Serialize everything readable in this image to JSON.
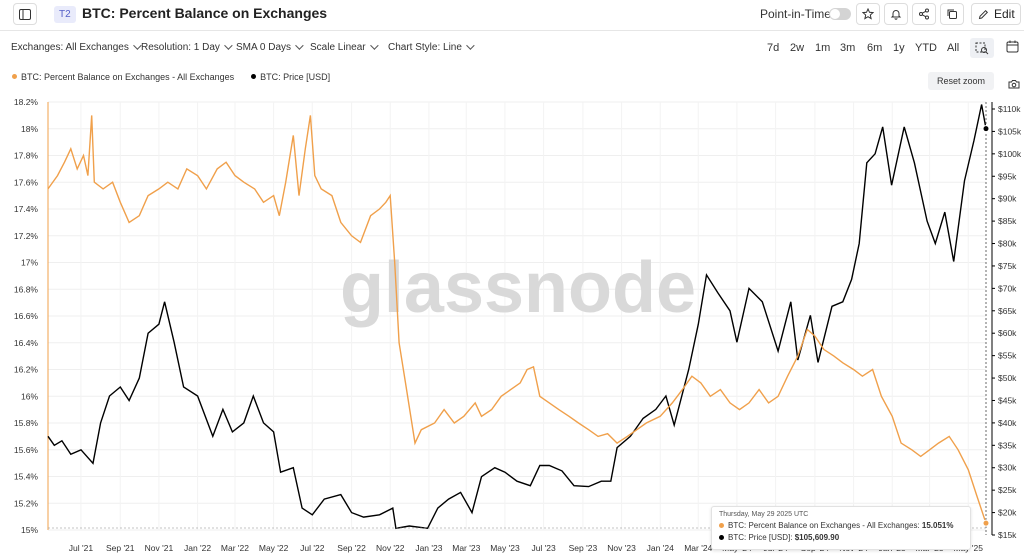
{
  "header": {
    "tier_badge": "T2",
    "title": "BTC: Percent Balance on Exchanges",
    "point_in_time_label": "Point-in-Time",
    "edit_label": "Edit"
  },
  "controls": {
    "exchanges": "Exchanges: All Exchanges",
    "resolution": "Resolution: 1 Day",
    "sma": "SMA 0 Days",
    "scale": "Scale Linear",
    "chart_style": "Chart Style: Line",
    "ranges": [
      "7d",
      "2w",
      "1m",
      "3m",
      "6m",
      "1y",
      "YTD",
      "All"
    ]
  },
  "reset_zoom_label": "Reset zoom",
  "watermark": "glassnode",
  "colors": {
    "balance": "#f0a04b",
    "price": "#000000"
  },
  "tooltip": {
    "date": "Thursday, May 29 2025 UTC",
    "balance_label": "BTC: Percent Balance on Exchanges - All Exchanges:",
    "balance_value": "15.051%",
    "price_label": "BTC: Price [USD]:",
    "price_value": "$105,609.90"
  },
  "chart_data": {
    "type": "line",
    "legend_placement": "top-left",
    "grid": true,
    "x_tick_labels": [
      "Jul '21",
      "Sep '21",
      "Nov '21",
      "Jan '22",
      "Mar '22",
      "May '22",
      "Jul '22",
      "Sep '22",
      "Nov '22",
      "Jan '23",
      "Mar '23",
      "May '23",
      "Jul '23",
      "Sep '23",
      "Nov '23",
      "Jan '24",
      "Mar '24",
      "May '24",
      "Jul '24",
      "Sep '24",
      "Nov '24",
      "Jan '25",
      "Mar '25",
      "May '25"
    ],
    "y_left_tick_labels": [
      "15%",
      "15.2%",
      "15.4%",
      "15.6%",
      "15.8%",
      "16%",
      "16.2%",
      "16.4%",
      "16.6%",
      "16.8%",
      "17%",
      "17.2%",
      "17.4%",
      "17.6%",
      "17.8%",
      "18%",
      "18.2%"
    ],
    "y_left_range": [
      15.0,
      18.2
    ],
    "y_right_tick_labels": [
      "$15k",
      "$20k",
      "$25k",
      "$30k",
      "$35k",
      "$40k",
      "$45k",
      "$50k",
      "$55k",
      "$60k",
      "$65k",
      "$70k",
      "$75k",
      "$80k",
      "$85k",
      "$90k",
      "$95k",
      "$100k",
      "$105k",
      "$110k"
    ],
    "y_right_range": [
      15000,
      110000
    ],
    "series": [
      {
        "name": "BTC: Percent Balance on Exchanges - All Exchanges",
        "axis": "left",
        "points": [
          [
            "2021-05-10",
            17.55
          ],
          [
            "2021-05-25",
            17.65
          ],
          [
            "2021-06-05",
            17.75
          ],
          [
            "2021-06-15",
            17.85
          ],
          [
            "2021-06-25",
            17.7
          ],
          [
            "2021-07-05",
            17.8
          ],
          [
            "2021-07-12",
            17.65
          ],
          [
            "2021-07-18",
            18.1
          ],
          [
            "2021-07-22",
            17.6
          ],
          [
            "2021-08-05",
            17.55
          ],
          [
            "2021-08-20",
            17.6
          ],
          [
            "2021-09-01",
            17.45
          ],
          [
            "2021-09-15",
            17.3
          ],
          [
            "2021-10-01",
            17.35
          ],
          [
            "2021-10-15",
            17.5
          ],
          [
            "2021-11-01",
            17.55
          ],
          [
            "2021-11-15",
            17.6
          ],
          [
            "2021-12-01",
            17.55
          ],
          [
            "2021-12-15",
            17.7
          ],
          [
            "2022-01-01",
            17.65
          ],
          [
            "2022-01-15",
            17.55
          ],
          [
            "2022-02-01",
            17.7
          ],
          [
            "2022-02-15",
            17.75
          ],
          [
            "2022-03-01",
            17.65
          ],
          [
            "2022-03-15",
            17.6
          ],
          [
            "2022-04-01",
            17.55
          ],
          [
            "2022-04-15",
            17.45
          ],
          [
            "2022-05-01",
            17.5
          ],
          [
            "2022-05-10",
            17.35
          ],
          [
            "2022-05-20",
            17.6
          ],
          [
            "2022-06-01",
            17.95
          ],
          [
            "2022-06-10",
            17.5
          ],
          [
            "2022-06-20",
            17.85
          ],
          [
            "2022-06-28",
            18.1
          ],
          [
            "2022-07-05",
            17.65
          ],
          [
            "2022-07-15",
            17.55
          ],
          [
            "2022-08-01",
            17.5
          ],
          [
            "2022-08-15",
            17.3
          ],
          [
            "2022-09-01",
            17.2
          ],
          [
            "2022-09-15",
            17.15
          ],
          [
            "2022-10-01",
            17.35
          ],
          [
            "2022-10-15",
            17.4
          ],
          [
            "2022-10-25",
            17.45
          ],
          [
            "2022-11-01",
            17.5
          ],
          [
            "2022-11-08",
            17.0
          ],
          [
            "2022-11-15",
            16.4
          ],
          [
            "2022-11-25",
            16.1
          ],
          [
            "2022-12-10",
            15.65
          ],
          [
            "2022-12-20",
            15.75
          ],
          [
            "2023-01-10",
            15.8
          ],
          [
            "2023-01-25",
            15.9
          ],
          [
            "2023-02-10",
            15.8
          ],
          [
            "2023-02-25",
            15.85
          ],
          [
            "2023-03-15",
            15.95
          ],
          [
            "2023-03-25",
            15.85
          ],
          [
            "2023-04-10",
            15.9
          ],
          [
            "2023-04-25",
            16.0
          ],
          [
            "2023-05-10",
            16.05
          ],
          [
            "2023-05-25",
            16.1
          ],
          [
            "2023-06-05",
            16.2
          ],
          [
            "2023-06-15",
            16.22
          ],
          [
            "2023-06-25",
            16.0
          ],
          [
            "2023-07-10",
            15.95
          ],
          [
            "2023-07-25",
            15.9
          ],
          [
            "2023-08-10",
            15.85
          ],
          [
            "2023-08-25",
            15.8
          ],
          [
            "2023-09-10",
            15.75
          ],
          [
            "2023-09-25",
            15.7
          ],
          [
            "2023-10-10",
            15.72
          ],
          [
            "2023-10-25",
            15.65
          ],
          [
            "2023-11-10",
            15.7
          ],
          [
            "2023-11-25",
            15.75
          ],
          [
            "2023-12-10",
            15.8
          ],
          [
            "2024-01-01",
            15.85
          ],
          [
            "2024-01-20",
            15.95
          ],
          [
            "2024-02-05",
            16.05
          ],
          [
            "2024-02-20",
            16.15
          ],
          [
            "2024-03-05",
            16.1
          ],
          [
            "2024-03-20",
            16.0
          ],
          [
            "2024-04-05",
            16.05
          ],
          [
            "2024-04-20",
            15.95
          ],
          [
            "2024-05-05",
            15.9
          ],
          [
            "2024-05-20",
            15.95
          ],
          [
            "2024-06-05",
            16.05
          ],
          [
            "2024-06-20",
            15.95
          ],
          [
            "2024-07-05",
            16.0
          ],
          [
            "2024-07-20",
            16.15
          ],
          [
            "2024-08-05",
            16.3
          ],
          [
            "2024-08-20",
            16.5
          ],
          [
            "2024-09-01",
            16.45
          ],
          [
            "2024-09-15",
            16.35
          ],
          [
            "2024-10-01",
            16.3
          ],
          [
            "2024-10-15",
            16.25
          ],
          [
            "2024-11-01",
            16.2
          ],
          [
            "2024-11-15",
            16.15
          ],
          [
            "2024-12-01",
            16.2
          ],
          [
            "2024-12-15",
            16.0
          ],
          [
            "2025-01-01",
            15.85
          ],
          [
            "2025-01-15",
            15.65
          ],
          [
            "2025-02-01",
            15.6
          ],
          [
            "2025-02-15",
            15.55
          ],
          [
            "2025-03-01",
            15.6
          ],
          [
            "2025-03-15",
            15.65
          ],
          [
            "2025-04-01",
            15.7
          ],
          [
            "2025-04-15",
            15.6
          ],
          [
            "2025-05-01",
            15.45
          ],
          [
            "2025-05-15",
            15.25
          ],
          [
            "2025-05-29",
            15.051
          ]
        ]
      },
      {
        "name": "BTC: Price [USD]",
        "axis": "right",
        "points": [
          [
            "2021-05-10",
            37000
          ],
          [
            "2021-05-20",
            35000
          ],
          [
            "2021-06-01",
            36000
          ],
          [
            "2021-06-15",
            33000
          ],
          [
            "2021-07-01",
            34000
          ],
          [
            "2021-07-20",
            31000
          ],
          [
            "2021-08-01",
            40000
          ],
          [
            "2021-08-15",
            46000
          ],
          [
            "2021-09-01",
            48000
          ],
          [
            "2021-09-15",
            45000
          ],
          [
            "2021-10-01",
            50000
          ],
          [
            "2021-10-15",
            60000
          ],
          [
            "2021-11-01",
            62000
          ],
          [
            "2021-11-10",
            67000
          ],
          [
            "2021-11-25",
            58000
          ],
          [
            "2021-12-10",
            48000
          ],
          [
            "2022-01-01",
            46000
          ],
          [
            "2022-01-25",
            37000
          ],
          [
            "2022-02-10",
            43000
          ],
          [
            "2022-02-25",
            38000
          ],
          [
            "2022-03-15",
            40000
          ],
          [
            "2022-03-30",
            46000
          ],
          [
            "2022-04-15",
            40000
          ],
          [
            "2022-05-01",
            38000
          ],
          [
            "2022-05-12",
            29000
          ],
          [
            "2022-06-01",
            30000
          ],
          [
            "2022-06-15",
            21000
          ],
          [
            "2022-07-01",
            19500
          ],
          [
            "2022-07-20",
            23000
          ],
          [
            "2022-08-15",
            24000
          ],
          [
            "2022-09-01",
            20000
          ],
          [
            "2022-09-20",
            19000
          ],
          [
            "2022-10-15",
            19500
          ],
          [
            "2022-11-05",
            21000
          ],
          [
            "2022-11-10",
            16500
          ],
          [
            "2022-12-01",
            17000
          ],
          [
            "2022-12-30",
            16500
          ],
          [
            "2023-01-15",
            21000
          ],
          [
            "2023-02-01",
            23000
          ],
          [
            "2023-02-20",
            24500
          ],
          [
            "2023-03-10",
            20000
          ],
          [
            "2023-03-25",
            28000
          ],
          [
            "2023-04-15",
            30000
          ],
          [
            "2023-05-01",
            29000
          ],
          [
            "2023-05-20",
            27000
          ],
          [
            "2023-06-10",
            26000
          ],
          [
            "2023-06-25",
            30500
          ],
          [
            "2023-07-10",
            30500
          ],
          [
            "2023-07-30",
            29300
          ],
          [
            "2023-08-18",
            26000
          ],
          [
            "2023-09-10",
            25800
          ],
          [
            "2023-09-30",
            27000
          ],
          [
            "2023-10-15",
            27000
          ],
          [
            "2023-10-25",
            34500
          ],
          [
            "2023-11-15",
            37000
          ],
          [
            "2023-12-05",
            41000
          ],
          [
            "2023-12-25",
            43000
          ],
          [
            "2024-01-10",
            46000
          ],
          [
            "2024-01-23",
            39500
          ],
          [
            "2024-02-15",
            52000
          ],
          [
            "2024-03-01",
            62000
          ],
          [
            "2024-03-14",
            73000
          ],
          [
            "2024-04-01",
            69000
          ],
          [
            "2024-04-20",
            65000
          ],
          [
            "2024-05-01",
            58000
          ],
          [
            "2024-05-20",
            70000
          ],
          [
            "2024-06-10",
            67000
          ],
          [
            "2024-07-05",
            56000
          ],
          [
            "2024-07-25",
            67000
          ],
          [
            "2024-08-05",
            54000
          ],
          [
            "2024-08-25",
            64000
          ],
          [
            "2024-09-06",
            53500
          ],
          [
            "2024-09-28",
            66000
          ],
          [
            "2024-10-15",
            67000
          ],
          [
            "2024-10-29",
            72000
          ],
          [
            "2024-11-10",
            80000
          ],
          [
            "2024-11-22",
            98000
          ],
          [
            "2024-12-05",
            100000
          ],
          [
            "2024-12-17",
            106000
          ],
          [
            "2024-12-31",
            93000
          ],
          [
            "2025-01-20",
            106000
          ],
          [
            "2025-02-05",
            98000
          ],
          [
            "2025-02-25",
            85000
          ],
          [
            "2025-03-10",
            80000
          ],
          [
            "2025-03-25",
            87000
          ],
          [
            "2025-04-08",
            76000
          ],
          [
            "2025-04-25",
            94000
          ],
          [
            "2025-05-10",
            103000
          ],
          [
            "2025-05-22",
            111000
          ],
          [
            "2025-05-29",
            105609.9
          ]
        ]
      }
    ]
  }
}
